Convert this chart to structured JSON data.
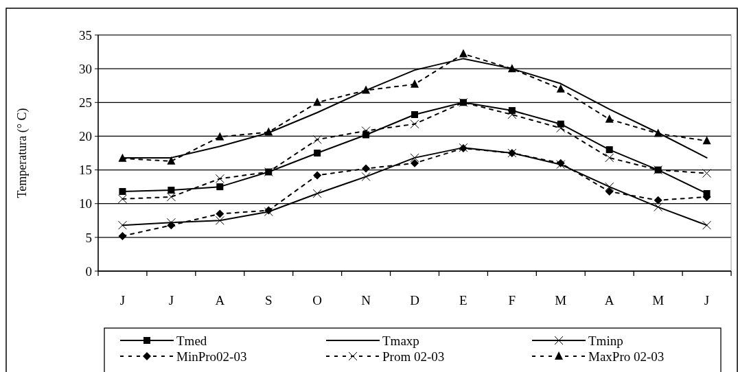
{
  "chart_data": {
    "type": "line",
    "ylabel": "Temperatura (° C)",
    "categories": [
      "J",
      "J",
      "A",
      "S",
      "O",
      "N",
      "D",
      "E",
      "F",
      "M",
      "A",
      "M",
      "J"
    ],
    "series": [
      {
        "name": "Tmed",
        "color": "#000000",
        "marker": "square",
        "line_style": "solid",
        "values": [
          11.8,
          12,
          12.5,
          14.7,
          17.5,
          20.2,
          23.2,
          25,
          23.8,
          21.8,
          18,
          15,
          11.5
        ]
      },
      {
        "name": "Tmaxp",
        "color": "#000000",
        "marker": "none",
        "line_style": "solid",
        "values": [
          16.8,
          16.8,
          18.5,
          20.5,
          23.5,
          26.8,
          29.8,
          31.5,
          30,
          27.8,
          24,
          20.5,
          16.8
        ]
      },
      {
        "name": "Tminp",
        "color": "#000000",
        "marker": "cross",
        "line_style": "solid",
        "values": [
          6.8,
          7.2,
          7.5,
          8.8,
          11.5,
          14,
          16.8,
          18.3,
          17.5,
          15.8,
          12.5,
          9.5,
          6.8
        ]
      },
      {
        "name": "MinPro02-03",
        "color": "#000000",
        "marker": "diamond",
        "line_style": "dashed",
        "values": [
          5.2,
          6.8,
          8.5,
          9,
          14.2,
          15.2,
          16,
          18.2,
          17.5,
          16,
          11.8,
          10.5,
          11
        ]
      },
      {
        "name": "Prom 02-03",
        "color": "#000000",
        "marker": "cross",
        "line_style": "dashed",
        "values": [
          10.7,
          11,
          13.7,
          14.7,
          19.5,
          20.8,
          21.8,
          25,
          23.2,
          21.2,
          16.8,
          15,
          14.5
        ]
      },
      {
        "name": "MaxPro 02-03",
        "color": "#000000",
        "marker": "triangle",
        "line_style": "dashed",
        "values": [
          16.7,
          16.3,
          19.9,
          20.6,
          25,
          26.8,
          27.7,
          32.2,
          30,
          27,
          22.5,
          20.4,
          19.3
        ]
      }
    ],
    "ylim": [
      0,
      35
    ],
    "yticks": [
      0,
      5,
      10,
      15,
      20,
      25,
      30,
      35
    ],
    "grid": "y",
    "legend": "bottom"
  }
}
